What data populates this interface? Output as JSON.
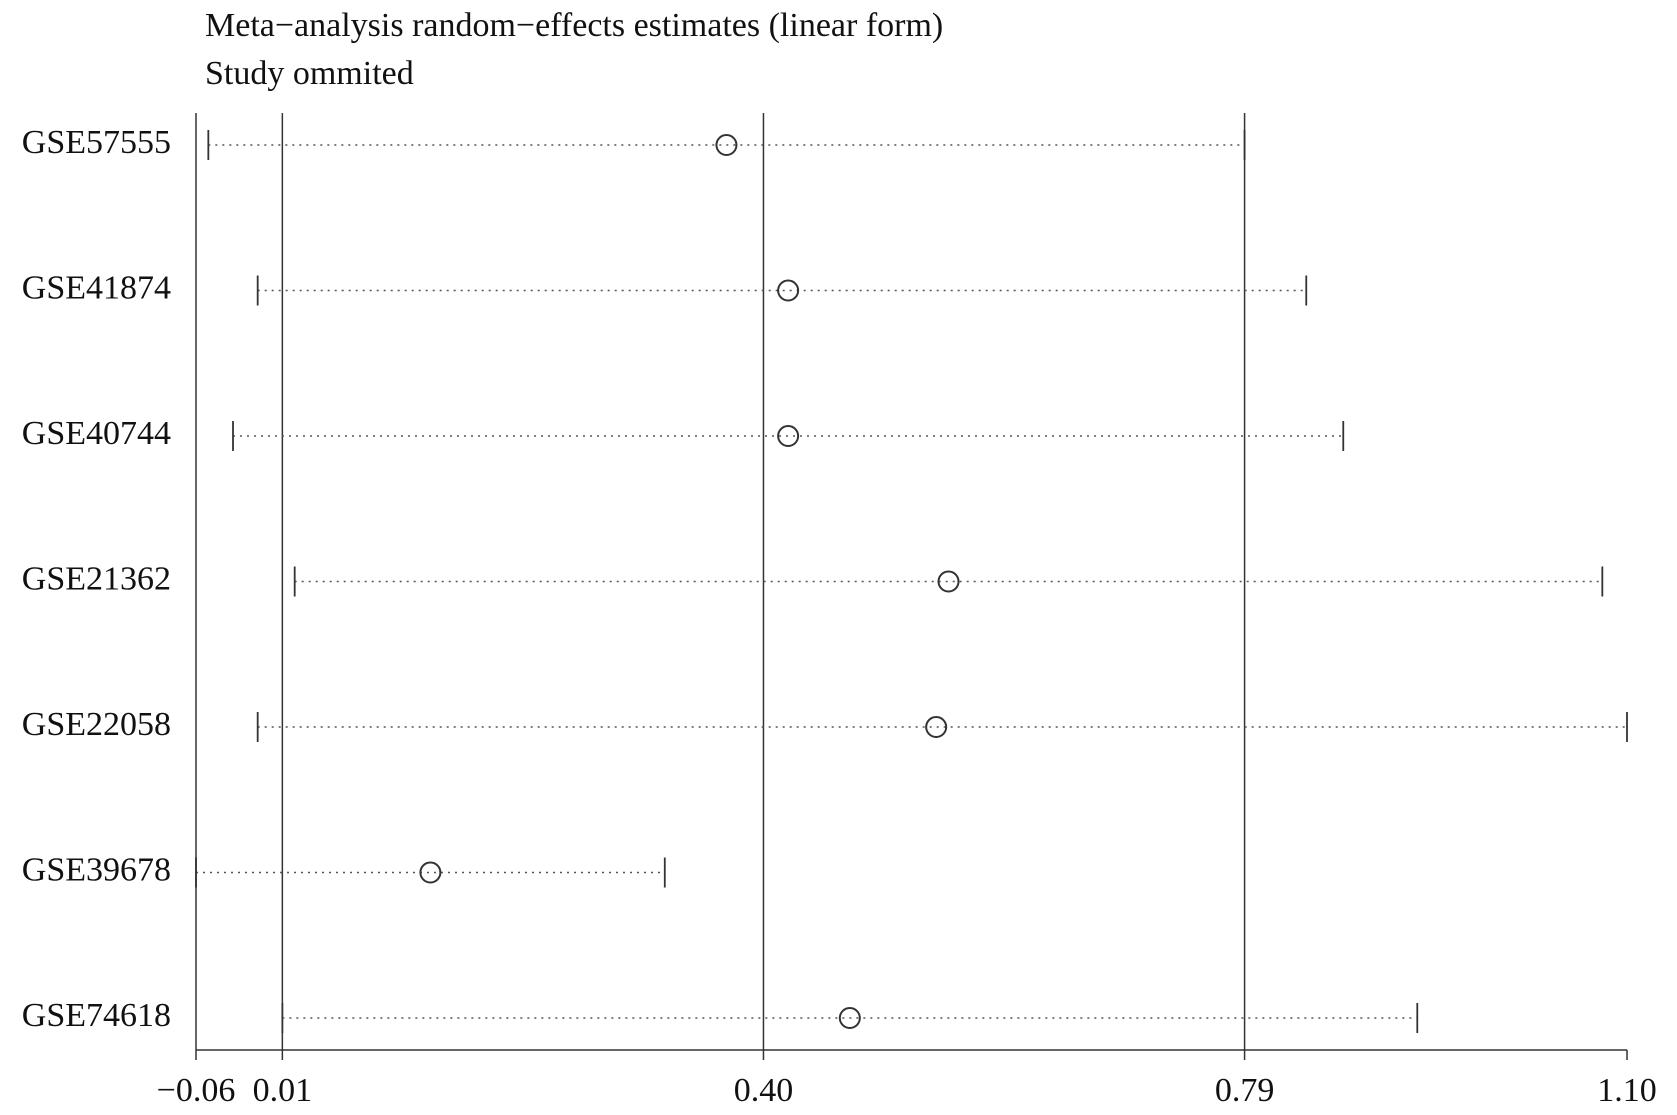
{
  "chart_data": {
    "type": "forest",
    "title": "Meta−analysis random−effects estimates (linear form)",
    "subtitle": "Study ommited",
    "categories": [
      "GSE57555",
      "GSE41874",
      "GSE40744",
      "GSE21362",
      "GSE22058",
      "GSE39678",
      "GSE74618"
    ],
    "values": [
      0.37,
      0.42,
      0.42,
      0.55,
      0.54,
      0.13,
      0.47
    ],
    "lower": [
      -0.05,
      -0.01,
      -0.03,
      0.02,
      -0.01,
      -0.06,
      0.01
    ],
    "upper": [
      0.79,
      0.84,
      0.87,
      1.08,
      1.1,
      0.32,
      0.93
    ],
    "color": "#333333",
    "xlim": [
      -0.06,
      1.1
    ],
    "xticks": [
      {
        "value": -0.06,
        "label": "−0.06"
      },
      0.01,
      {
        "value": 0.4,
        "label": "0.40"
      },
      0.79,
      {
        "value": 1.1,
        "label": "1.10"
      }
    ],
    "grid": true
  }
}
